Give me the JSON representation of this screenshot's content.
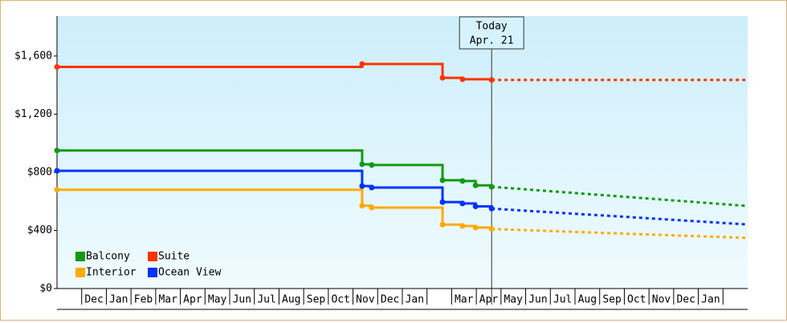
{
  "chart_data": {
    "type": "step-line",
    "annotation": {
      "lines": [
        "Today",
        "Apr. 21"
      ],
      "x": 17.62
    },
    "x_categories": [
      null,
      "Dec",
      "Jan",
      "Feb",
      "Mar",
      "Apr",
      "May",
      "Jun",
      "Jul",
      "Aug",
      "Sep",
      "Oct",
      "Nov",
      "Dec",
      "Jan",
      null,
      "Mar",
      "Apr",
      "May",
      "Jun",
      "Jul",
      "Aug",
      "Sep",
      "Oct",
      "Nov",
      "Dec",
      "Jan",
      null
    ],
    "xlim": [
      0,
      28
    ],
    "ylim": [
      0,
      1875
    ],
    "yticks": [
      {
        "value": 0,
        "label": "$0"
      },
      {
        "value": 400,
        "label": "$400"
      },
      {
        "value": 800,
        "label": "$800"
      },
      {
        "value": 1200,
        "label": "$1,200"
      },
      {
        "value": 1600,
        "label": "$1,600"
      }
    ],
    "grid": false,
    "legend_position": "bottom-left",
    "series": [
      {
        "name": "Balcony",
        "color": "#119a11",
        "x": [
          0,
          12.37,
          12.76,
          15.63,
          16.44,
          16.97,
          17.62
        ],
        "values": [
          950,
          855,
          850,
          745,
          740,
          710,
          700
        ],
        "forecast_x": [
          28
        ],
        "forecast_values": [
          568
        ]
      },
      {
        "name": "Suite",
        "color": "#ff3300",
        "x": [
          0,
          12.37,
          15.63,
          16.44,
          17.62
        ],
        "values": [
          1525,
          1545,
          1450,
          1440,
          1435
        ],
        "forecast_x": [
          28
        ],
        "forecast_values": [
          1435
        ]
      },
      {
        "name": "Interior",
        "color": "#ffaa00",
        "x": [
          0,
          12.37,
          12.76,
          15.63,
          16.44,
          16.97,
          17.62
        ],
        "values": [
          680,
          570,
          557,
          440,
          430,
          420,
          410
        ],
        "forecast_x": [
          28
        ],
        "forecast_values": [
          348
        ]
      },
      {
        "name": "Ocean View",
        "color": "#0033ff",
        "x": [
          0,
          12.37,
          12.76,
          15.63,
          16.44,
          16.97,
          17.62
        ],
        "values": [
          810,
          705,
          695,
          595,
          585,
          565,
          550
        ],
        "forecast_x": [
          28
        ],
        "forecast_values": [
          441
        ]
      }
    ]
  }
}
